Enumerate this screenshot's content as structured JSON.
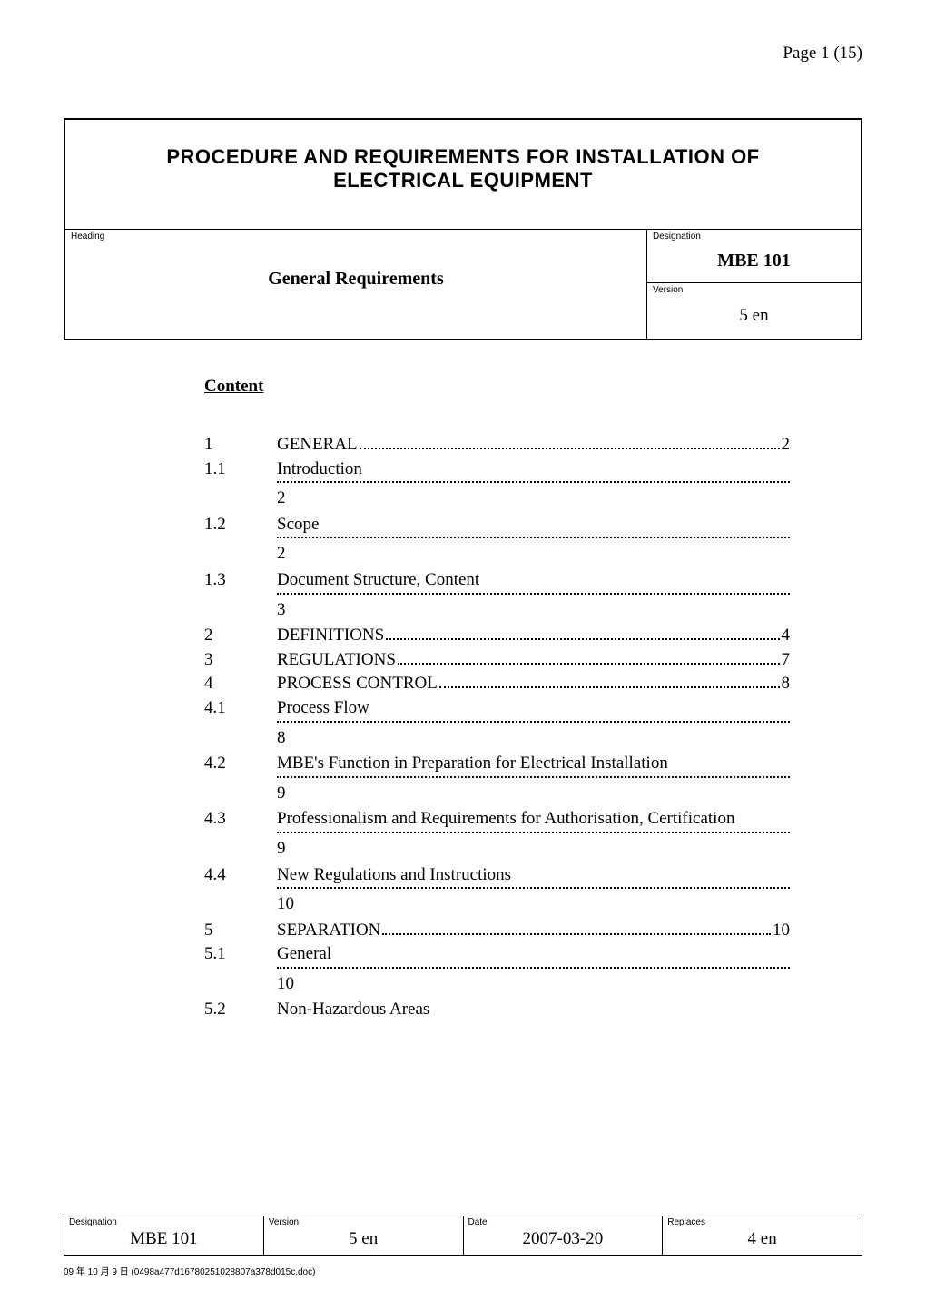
{
  "page_label": "Page 1 (15)",
  "title_line1": "PROCEDURE AND REQUIREMENTS FOR INSTALLATION OF",
  "title_line2": "ELECTRICAL EQUIPMENT",
  "labels": {
    "heading": "Heading",
    "designation": "Designation",
    "version": "Version",
    "date": "Date",
    "replaces": "Replaces",
    "content": "Content"
  },
  "header": {
    "heading_value": "General Requirements",
    "designation_value": "MBE 101",
    "version_value": "5 en"
  },
  "toc": [
    {
      "num": "1",
      "title": "GENERAL",
      "page": "2",
      "style": "inline"
    },
    {
      "num": "1.1",
      "title": "Introduction",
      "page": "2",
      "style": "wrap"
    },
    {
      "num": "1.2",
      "title": "Scope",
      "page": "2",
      "style": "wrap"
    },
    {
      "num": "1.3",
      "title": "Document Structure, Content",
      "page": "3",
      "style": "wrap"
    },
    {
      "num": "2",
      "title": "DEFINITIONS",
      "page": "4",
      "style": "inline"
    },
    {
      "num": "3",
      "title": "REGULATIONS",
      "page": "7",
      "style": "inline"
    },
    {
      "num": "4",
      "title": "PROCESS CONTROL",
      "page": "8",
      "style": "inline"
    },
    {
      "num": "4.1",
      "title": "Process Flow",
      "page": "8",
      "style": "wrap"
    },
    {
      "num": "4.2",
      "title": "MBE's Function in Preparation for Electrical Installation",
      "page": "9",
      "style": "wrap"
    },
    {
      "num": "4.3",
      "title": "Professionalism and Requirements for Authorisation, Certification",
      "page": "9",
      "style": "wrap"
    },
    {
      "num": "4.4",
      "title": "New Regulations and Instructions",
      "page": "10",
      "style": "wrap"
    },
    {
      "num": "5",
      "title": "SEPARATION",
      "page": "10",
      "style": "inline"
    },
    {
      "num": "5.1",
      "title": "General",
      "page": "10",
      "style": "wrap"
    },
    {
      "num": "5.2",
      "title": "Non-Hazardous Areas",
      "page": "",
      "style": "title_only"
    }
  ],
  "footer": {
    "designation": "MBE 101",
    "version": "5 en",
    "date": "2007-03-20",
    "replaces": "4 en",
    "col_widths": [
      "25%",
      "25%",
      "25%",
      "25%"
    ]
  },
  "footnote": "09 年 10 月 9 日 (0498a477d16780251028807a378d015c.doc)"
}
